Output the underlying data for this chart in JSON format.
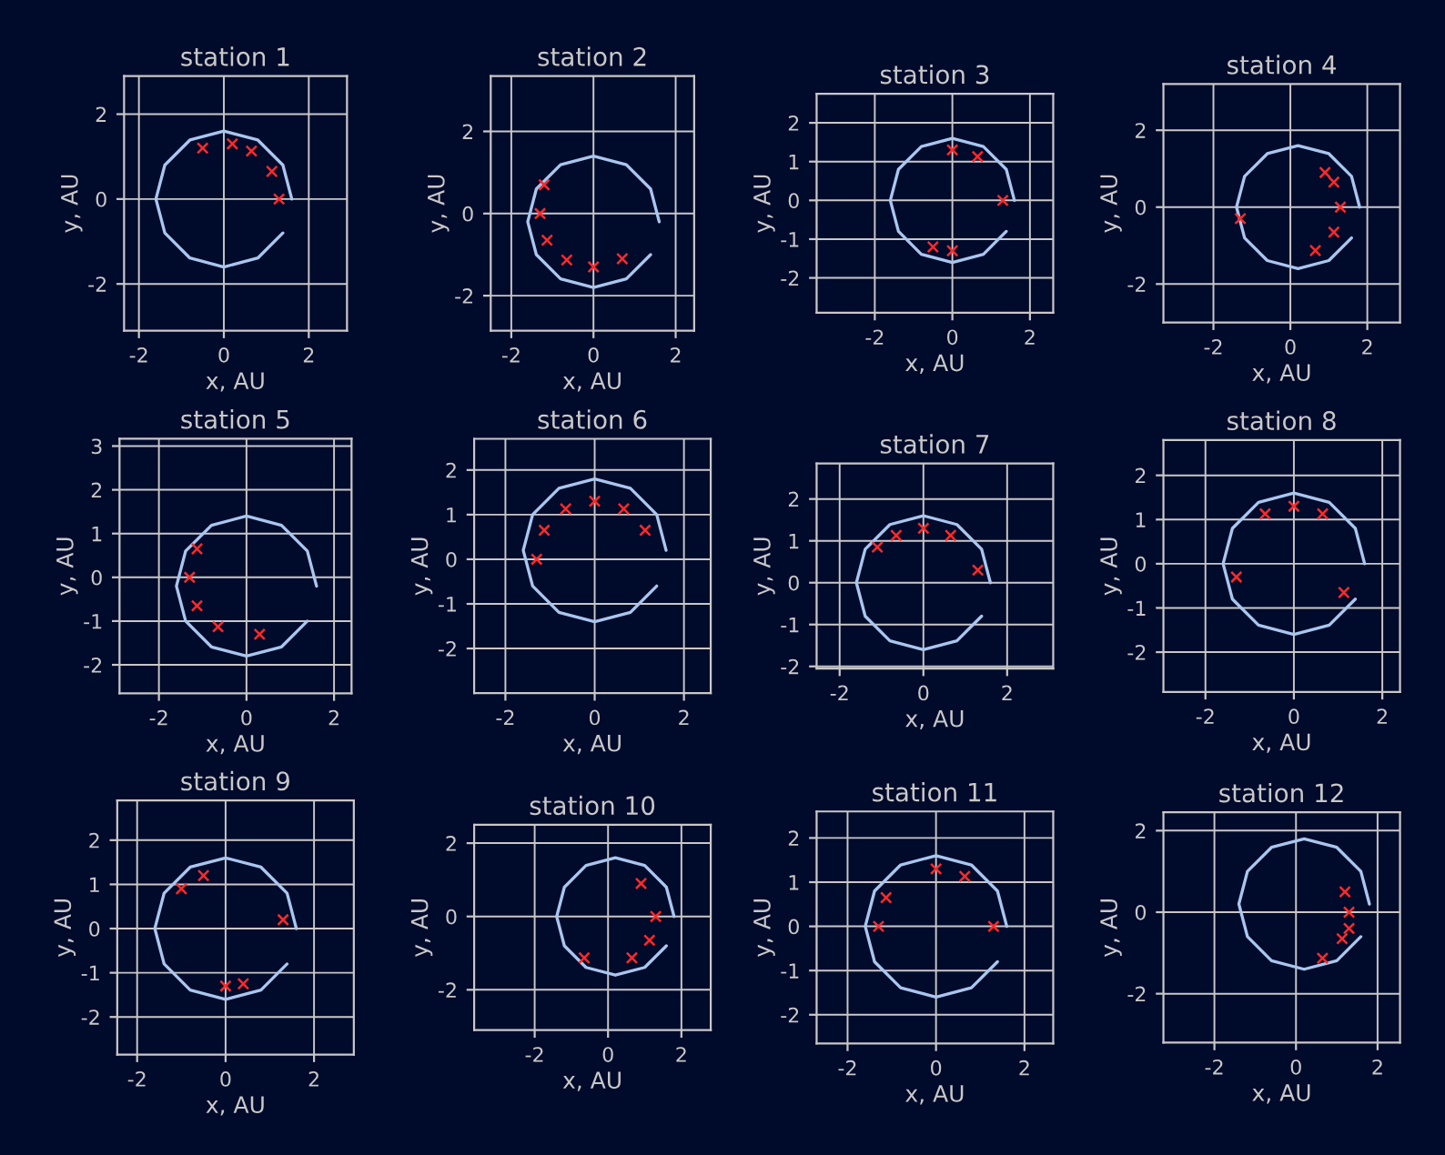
{
  "chart_data": [
    {
      "type": "line",
      "title": "station 1",
      "xlabel": "x, AU",
      "ylabel": "y, AU",
      "xlim": [
        -2.35,
        2.9
      ],
      "ylim": [
        -3.1,
        2.9
      ],
      "xticks": [
        -2,
        0,
        2
      ],
      "yticks": [
        -2,
        0,
        2
      ],
      "grid": true,
      "series": [
        {
          "color": "#a9c6ee",
          "x": [
            1.6,
            1.39,
            0.8,
            0,
            -0.8,
            -1.39,
            -1.6,
            -1.39,
            -0.8,
            0,
            0.8,
            1.39
          ],
          "values": [
            0,
            0.8,
            1.39,
            1.6,
            1.39,
            0.8,
            0,
            -0.8,
            -1.39,
            -1.6,
            -1.39,
            -0.8
          ]
        },
        {
          "type": "scatter",
          "color": "#ff2a2a",
          "marker": "cross",
          "x": [
            -0.5,
            0.2,
            0.65,
            1.13,
            1.3
          ],
          "values": [
            1.2,
            1.3,
            1.13,
            0.65,
            0
          ]
        }
      ]
    },
    {
      "type": "line",
      "title": "station 2",
      "xlabel": "x, AU",
      "ylabel": "y, AU",
      "xlim": [
        -2.5,
        2.45
      ],
      "ylim": [
        -2.85,
        3.35
      ],
      "xticks": [
        -2,
        0,
        2
      ],
      "yticks": [
        -2,
        0,
        2
      ],
      "grid": true,
      "series": [
        {
          "color": "#a9c6ee",
          "x": [
            1.6,
            1.39,
            0.8,
            0,
            -0.8,
            -1.39,
            -1.6,
            -1.39,
            -0.8,
            0,
            0.8,
            1.39
          ],
          "values": [
            -0.2,
            0.6,
            1.19,
            1.4,
            1.19,
            0.6,
            -0.2,
            -1.0,
            -1.59,
            -1.8,
            -1.59,
            -1.0
          ]
        },
        {
          "type": "scatter",
          "color": "#ff2a2a",
          "marker": "cross",
          "x": [
            -1.2,
            -1.3,
            -1.13,
            -0.65,
            0,
            0.7
          ],
          "values": [
            0.7,
            0,
            -0.65,
            -1.13,
            -1.3,
            -1.1
          ]
        }
      ]
    },
    {
      "type": "line",
      "title": "station 3",
      "xlabel": "x, AU",
      "ylabel": "y, AU",
      "xlim": [
        -3.5,
        2.6
      ],
      "ylim": [
        -2.9,
        2.75
      ],
      "xticks": [
        -2,
        0,
        2
      ],
      "yticks": [
        -2,
        -1,
        0,
        1,
        2
      ],
      "grid": true,
      "series": [
        {
          "color": "#a9c6ee",
          "x": [
            1.6,
            1.39,
            0.8,
            0,
            -0.8,
            -1.39,
            -1.6,
            -1.39,
            -0.8,
            0,
            0.8,
            1.39
          ],
          "values": [
            0,
            0.8,
            1.39,
            1.6,
            1.39,
            0.8,
            0,
            -0.8,
            -1.39,
            -1.6,
            -1.39,
            -0.8
          ]
        },
        {
          "type": "scatter",
          "color": "#ff2a2a",
          "marker": "cross",
          "x": [
            0,
            0.65,
            1.3,
            -0.5,
            0
          ],
          "values": [
            1.3,
            1.13,
            0,
            -1.2,
            -1.3
          ]
        }
      ]
    },
    {
      "type": "line",
      "title": "station 4",
      "xlabel": "x, AU",
      "ylabel": "y, AU",
      "xlim": [
        -3.3,
        2.85
      ],
      "ylim": [
        -3.0,
        3.2
      ],
      "xticks": [
        -2,
        0,
        2
      ],
      "yticks": [
        -2,
        0,
        2
      ],
      "grid": true,
      "series": [
        {
          "color": "#a9c6ee",
          "x": [
            1.8,
            1.59,
            1.0,
            0.2,
            -0.6,
            -1.19,
            -1.4,
            -1.19,
            -0.6,
            0.2,
            1.0,
            1.59
          ],
          "values": [
            0,
            0.8,
            1.39,
            1.6,
            1.39,
            0.8,
            0,
            -0.8,
            -1.39,
            -1.6,
            -1.39,
            -0.8
          ]
        },
        {
          "type": "scatter",
          "color": "#ff2a2a",
          "marker": "cross",
          "x": [
            0.9,
            1.13,
            1.3,
            1.13,
            0.65,
            -1.3
          ],
          "values": [
            0.9,
            0.65,
            0,
            -0.65,
            -1.13,
            -0.3
          ]
        }
      ]
    },
    {
      "type": "line",
      "title": "station 5",
      "xlabel": "x, AU",
      "ylabel": "y, AU",
      "xlim": [
        -2.9,
        2.4
      ],
      "ylim": [
        -2.65,
        3.17
      ],
      "xticks": [
        -2,
        0,
        2
      ],
      "yticks": [
        -2,
        -1,
        0,
        1,
        2,
        3
      ],
      "grid": true,
      "series": [
        {
          "color": "#a9c6ee",
          "x": [
            1.6,
            1.39,
            0.8,
            0,
            -0.8,
            -1.39,
            -1.6,
            -1.39,
            -0.8,
            0,
            0.8,
            1.39
          ],
          "values": [
            -0.2,
            0.6,
            1.19,
            1.4,
            1.19,
            0.6,
            -0.2,
            -1.0,
            -1.59,
            -1.8,
            -1.59,
            -1.0
          ]
        },
        {
          "type": "scatter",
          "color": "#ff2a2a",
          "marker": "cross",
          "x": [
            -1.13,
            -1.3,
            -1.13,
            -0.65,
            0.3
          ],
          "values": [
            0.65,
            0,
            -0.65,
            -1.13,
            -1.3
          ]
        }
      ]
    },
    {
      "type": "line",
      "title": "station 6",
      "xlabel": "x, AU",
      "ylabel": "y, AU",
      "xlim": [
        -2.7,
        2.6
      ],
      "ylim": [
        -3.0,
        2.7
      ],
      "xticks": [
        -2,
        0,
        2
      ],
      "yticks": [
        -2,
        -1,
        0,
        1,
        2
      ],
      "grid": true,
      "series": [
        {
          "color": "#a9c6ee",
          "x": [
            1.6,
            1.39,
            0.8,
            0,
            -0.8,
            -1.39,
            -1.6,
            -1.39,
            -0.8,
            0,
            0.8,
            1.39
          ],
          "values": [
            0.2,
            1.0,
            1.59,
            1.8,
            1.59,
            1.0,
            0.2,
            -0.6,
            -1.19,
            -1.4,
            -1.19,
            -0.6
          ]
        },
        {
          "type": "scatter",
          "color": "#ff2a2a",
          "marker": "cross",
          "x": [
            -1.3,
            -1.13,
            -0.65,
            0,
            0.65,
            1.13
          ],
          "values": [
            0,
            0.65,
            1.13,
            1.3,
            1.13,
            0.65
          ]
        }
      ]
    },
    {
      "type": "line",
      "title": "station 7",
      "xlabel": "x, AU",
      "ylabel": "y, AU",
      "xlim": [
        -2.55,
        3.1
      ],
      "ylim": [
        -2.05,
        2.85
      ],
      "xticks": [
        -2,
        0,
        2
      ],
      "yticks": [
        -2,
        -1,
        0,
        1,
        2
      ],
      "grid": true,
      "series": [
        {
          "color": "#a9c6ee",
          "x": [
            1.6,
            1.39,
            0.8,
            0,
            -0.8,
            -1.39,
            -1.6,
            -1.39,
            -0.8,
            0,
            0.8,
            1.39
          ],
          "values": [
            0,
            0.8,
            1.39,
            1.6,
            1.39,
            0.8,
            0,
            -0.8,
            -1.39,
            -1.6,
            -1.39,
            -0.8
          ]
        },
        {
          "type": "scatter",
          "color": "#ff2a2a",
          "marker": "cross",
          "x": [
            -1.1,
            -0.65,
            0,
            0.65,
            1.3
          ],
          "values": [
            0.85,
            1.13,
            1.3,
            1.13,
            0.3
          ]
        }
      ]
    },
    {
      "type": "line",
      "title": "station 8",
      "xlabel": "x, AU",
      "ylabel": "y, AU",
      "xlim": [
        -2.95,
        2.4
      ],
      "ylim": [
        -2.9,
        2.8
      ],
      "xticks": [
        -2,
        0,
        2
      ],
      "yticks": [
        -2,
        -1,
        0,
        1,
        2
      ],
      "grid": true,
      "series": [
        {
          "color": "#a9c6ee",
          "x": [
            1.6,
            1.39,
            0.8,
            0,
            -0.8,
            -1.39,
            -1.6,
            -1.39,
            -0.8,
            0,
            0.8,
            1.39
          ],
          "values": [
            0,
            0.8,
            1.39,
            1.6,
            1.39,
            0.8,
            0,
            -0.8,
            -1.39,
            -1.6,
            -1.39,
            -0.8
          ]
        },
        {
          "type": "scatter",
          "color": "#ff2a2a",
          "marker": "cross",
          "x": [
            -1.3,
            -0.65,
            0,
            0.65,
            1.13
          ],
          "values": [
            -0.3,
            1.13,
            1.3,
            1.13,
            -0.65
          ]
        }
      ]
    },
    {
      "type": "line",
      "title": "station 9",
      "xlabel": "x, AU",
      "ylabel": "y, AU",
      "xlim": [
        -2.45,
        2.9
      ],
      "ylim": [
        -2.85,
        2.9
      ],
      "xticks": [
        -2,
        0,
        2
      ],
      "yticks": [
        -2,
        -1,
        0,
        1,
        2
      ],
      "grid": true,
      "series": [
        {
          "color": "#a9c6ee",
          "x": [
            1.6,
            1.39,
            0.8,
            0,
            -0.8,
            -1.39,
            -1.6,
            -1.39,
            -0.8,
            0,
            0.8,
            1.39
          ],
          "values": [
            0,
            0.8,
            1.39,
            1.6,
            1.39,
            0.8,
            0,
            -0.8,
            -1.39,
            -1.6,
            -1.39,
            -0.8
          ]
        },
        {
          "type": "scatter",
          "color": "#ff2a2a",
          "marker": "cross",
          "x": [
            -1.0,
            -0.5,
            0,
            0.4,
            1.3
          ],
          "values": [
            0.9,
            1.2,
            -1.3,
            -1.25,
            0.2
          ]
        }
      ]
    },
    {
      "type": "line",
      "title": "station 10",
      "xlabel": "x, AU",
      "ylabel": "y, AU",
      "xlim": [
        -3.65,
        2.8
      ],
      "ylim": [
        -3.1,
        2.5
      ],
      "xticks": [
        -2,
        0,
        2
      ],
      "yticks": [
        -2,
        0,
        2
      ],
      "grid": true,
      "series": [
        {
          "color": "#a9c6ee",
          "x": [
            1.8,
            1.59,
            1.0,
            0.2,
            -0.6,
            -1.19,
            -1.4,
            -1.19,
            -0.6,
            0.2,
            1.0,
            1.59
          ],
          "values": [
            0,
            0.8,
            1.39,
            1.6,
            1.39,
            0.8,
            0,
            -0.8,
            -1.39,
            -1.6,
            -1.39,
            -0.8
          ]
        },
        {
          "type": "scatter",
          "color": "#ff2a2a",
          "marker": "cross",
          "x": [
            0.9,
            1.3,
            1.13,
            0.65,
            -0.65
          ],
          "values": [
            0.9,
            0,
            -0.65,
            -1.13,
            -1.13
          ]
        }
      ]
    },
    {
      "type": "line",
      "title": "station 11",
      "xlabel": "x, AU",
      "ylabel": "y, AU",
      "xlim": [
        -2.7,
        2.65
      ],
      "ylim": [
        -2.65,
        2.6
      ],
      "xticks": [
        -2,
        0,
        2
      ],
      "yticks": [
        -2,
        -1,
        0,
        1,
        2
      ],
      "grid": true,
      "series": [
        {
          "color": "#a9c6ee",
          "x": [
            1.6,
            1.39,
            0.8,
            0,
            -0.8,
            -1.39,
            -1.6,
            -1.39,
            -0.8,
            0,
            0.8,
            1.39
          ],
          "values": [
            0,
            0.8,
            1.39,
            1.6,
            1.39,
            0.8,
            0,
            -0.8,
            -1.39,
            -1.6,
            -1.39,
            -0.8
          ]
        },
        {
          "type": "scatter",
          "color": "#ff2a2a",
          "marker": "cross",
          "x": [
            -1.3,
            -1.13,
            0,
            0.65,
            1.3
          ],
          "values": [
            0,
            0.65,
            1.3,
            1.13,
            0
          ]
        }
      ]
    },
    {
      "type": "line",
      "title": "station 12",
      "xlabel": "x, AU",
      "ylabel": "y, AU",
      "xlim": [
        -3.25,
        2.55
      ],
      "ylim": [
        -3.2,
        2.45
      ],
      "xticks": [
        -2,
        0,
        2
      ],
      "yticks": [
        -2,
        0,
        2
      ],
      "grid": true,
      "series": [
        {
          "color": "#a9c6ee",
          "x": [
            1.8,
            1.59,
            1.0,
            0.2,
            -0.6,
            -1.19,
            -1.4,
            -1.19,
            -0.6,
            0.2,
            1.0,
            1.59
          ],
          "values": [
            0.2,
            1.0,
            1.59,
            1.8,
            1.59,
            1.0,
            0.2,
            -0.6,
            -1.19,
            -1.4,
            -1.19,
            -0.6
          ]
        },
        {
          "type": "scatter",
          "color": "#ff2a2a",
          "marker": "cross",
          "x": [
            1.2,
            1.3,
            1.3,
            1.13,
            0.65
          ],
          "values": [
            0.5,
            0,
            -0.4,
            -0.65,
            -1.13
          ]
        }
      ]
    }
  ]
}
